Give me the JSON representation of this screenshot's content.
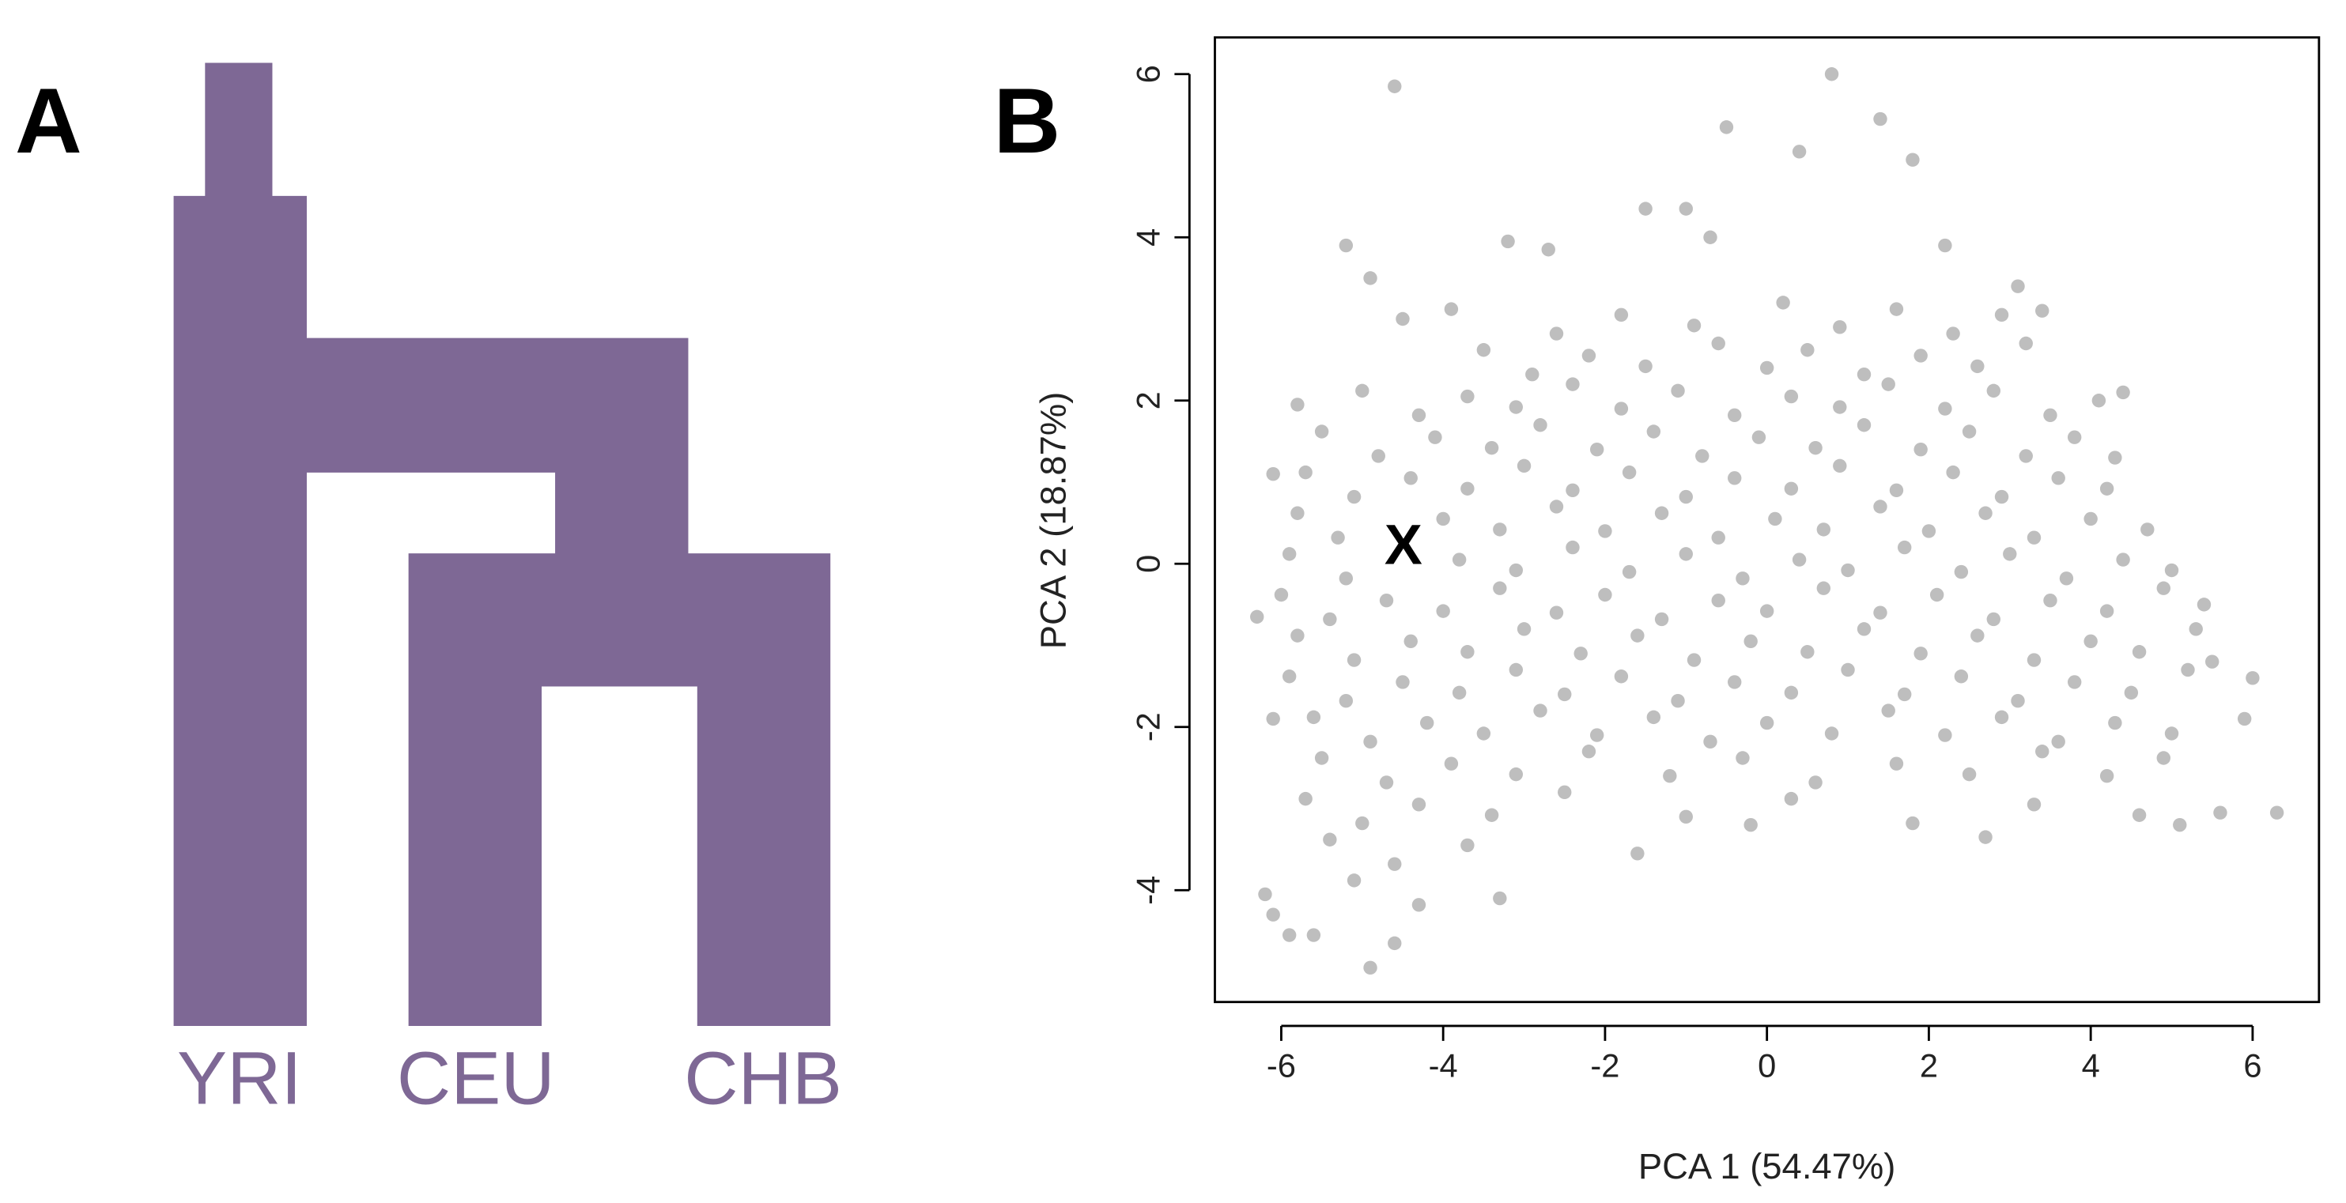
{
  "panel_a": {
    "label": "A",
    "populations": [
      "YRI",
      "CEU",
      "CHB"
    ]
  },
  "chart_data": {
    "type": "scatter",
    "panel_label": "B",
    "annotation": "X",
    "x_label": "PCA 1 (54.47%)",
    "y_label": "PCA 2 (18.87%)",
    "color": "#bebebe",
    "xlim": [
      -6.82,
      6.82
    ],
    "ylim": [
      -5.37,
      6.45
    ],
    "xticks": [
      -6,
      -4,
      -2,
      0,
      2,
      4,
      6
    ],
    "yticks": [
      -4,
      -2,
      0,
      2,
      4,
      6
    ],
    "x": [
      -3.9,
      -2.6,
      -1.8,
      -0.9,
      0.2,
      0.9,
      1.6,
      2.3,
      2.9,
      -3.5,
      -2.9,
      -2.2,
      -1.5,
      -0.6,
      0.0,
      0.5,
      1.2,
      1.9,
      2.6,
      3.2,
      -5.0,
      -4.3,
      -3.7,
      -3.1,
      -2.4,
      -1.8,
      -1.1,
      -0.4,
      0.3,
      0.9,
      1.5,
      2.2,
      2.8,
      3.5,
      -5.5,
      -4.8,
      -4.1,
      -3.4,
      -2.8,
      -2.1,
      -1.4,
      -0.8,
      -0.1,
      0.6,
      1.2,
      1.9,
      2.5,
      3.2,
      3.8,
      -5.7,
      -5.1,
      -4.4,
      -3.7,
      -3.0,
      -2.4,
      -1.7,
      -1.0,
      -0.4,
      0.3,
      0.9,
      1.6,
      2.3,
      2.9,
      3.6,
      4.2,
      -5.8,
      -5.3,
      -4.0,
      -3.3,
      -2.6,
      -2.0,
      -1.3,
      -0.6,
      0.1,
      0.7,
      1.4,
      2.0,
      2.7,
      3.3,
      4.0,
      4.7,
      -5.9,
      -5.2,
      -3.8,
      -3.1,
      -2.4,
      -1.7,
      -1.0,
      -0.3,
      0.4,
      1.0,
      1.7,
      2.4,
      3.0,
      3.7,
      4.4,
      5.0,
      -6.0,
      -5.4,
      -4.7,
      -4.0,
      -3.3,
      -2.6,
      -2.0,
      -1.3,
      -0.6,
      0.0,
      0.7,
      1.4,
      2.1,
      2.8,
      3.5,
      4.2,
      4.9,
      -5.8,
      -5.1,
      -4.4,
      -3.7,
      -3.0,
      -2.3,
      -1.6,
      -0.9,
      -0.2,
      0.5,
      1.2,
      1.9,
      2.6,
      3.3,
      4.0,
      4.6,
      5.3,
      -5.9,
      -5.2,
      -4.5,
      -3.8,
      -3.1,
      -2.5,
      -1.8,
      -1.1,
      -0.4,
      0.3,
      1.0,
      1.7,
      2.4,
      3.1,
      3.8,
      4.5,
      5.2,
      -5.6,
      -4.9,
      -4.2,
      -3.5,
      -2.8,
      -2.1,
      -1.4,
      -0.7,
      0.0,
      0.8,
      1.5,
      2.2,
      2.9,
      3.6,
      4.3,
      5.0,
      -5.5,
      -4.7,
      -3.9,
      -3.1,
      -2.2,
      -1.2,
      -0.3,
      0.6,
      1.6,
      2.5,
      3.4,
      4.2,
      4.9,
      -5.7,
      -5.0,
      -4.3,
      -3.4,
      -2.5,
      -1.0,
      0.3,
      1.8,
      3.3,
      4.6,
      -5.4,
      -4.6,
      -3.7,
      -5.1,
      -4.3,
      -4.6,
      0.8,
      -0.5,
      1.4,
      0.4,
      1.8,
      -5.2,
      -4.9,
      -4.5,
      -6.1,
      -5.8,
      -6.3,
      -6.1,
      -6.2,
      -6.1,
      -5.9,
      -5.6,
      -4.9,
      -4.6,
      -3.3,
      -1.6,
      -0.2,
      2.7,
      6.3,
      5.9,
      6.0,
      5.6,
      5.1,
      4.4,
      4.1,
      3.4,
      3.1,
      -3.2,
      -2.7,
      -1.5,
      -1.0,
      -0.7,
      2.2,
      5.4,
      5.5,
      4.3
    ],
    "values": [
      3.12,
      2.82,
      3.05,
      2.92,
      3.2,
      2.9,
      3.12,
      2.82,
      3.05,
      2.62,
      2.32,
      2.55,
      2.42,
      2.7,
      2.4,
      2.62,
      2.32,
      2.55,
      2.42,
      2.7,
      2.12,
      1.82,
      2.05,
      1.92,
      2.2,
      1.9,
      2.12,
      1.82,
      2.05,
      1.92,
      2.2,
      1.9,
      2.12,
      1.82,
      1.62,
      1.32,
      1.55,
      1.42,
      1.7,
      1.4,
      1.62,
      1.32,
      1.55,
      1.42,
      1.7,
      1.4,
      1.62,
      1.32,
      1.55,
      1.12,
      0.82,
      1.05,
      0.92,
      1.2,
      0.9,
      1.12,
      0.82,
      1.05,
      0.92,
      1.2,
      0.9,
      1.12,
      0.82,
      1.05,
      0.92,
      0.62,
      0.32,
      0.55,
      0.42,
      0.7,
      0.4,
      0.62,
      0.32,
      0.55,
      0.42,
      0.7,
      0.4,
      0.62,
      0.32,
      0.55,
      0.42,
      0.12,
      -0.18,
      0.05,
      -0.08,
      0.2,
      -0.1,
      0.12,
      -0.18,
      0.05,
      -0.08,
      0.2,
      -0.1,
      0.12,
      -0.18,
      0.05,
      -0.08,
      -0.38,
      -0.68,
      -0.45,
      -0.58,
      -0.3,
      -0.6,
      -0.38,
      -0.68,
      -0.45,
      -0.58,
      -0.3,
      -0.6,
      -0.38,
      -0.68,
      -0.45,
      -0.58,
      -0.3,
      -0.88,
      -1.18,
      -0.95,
      -1.08,
      -0.8,
      -1.1,
      -0.88,
      -1.18,
      -0.95,
      -1.08,
      -0.8,
      -1.1,
      -0.88,
      -1.18,
      -0.95,
      -1.08,
      -0.8,
      -1.38,
      -1.68,
      -1.45,
      -1.58,
      -1.3,
      -1.6,
      -1.38,
      -1.68,
      -1.45,
      -1.58,
      -1.3,
      -1.6,
      -1.38,
      -1.68,
      -1.45,
      -1.58,
      -1.3,
      -1.88,
      -2.18,
      -1.95,
      -2.08,
      -1.8,
      -2.1,
      -1.88,
      -2.18,
      -1.95,
      -2.08,
      -1.8,
      -2.1,
      -1.88,
      -2.18,
      -1.95,
      -2.08,
      -2.38,
      -2.68,
      -2.45,
      -2.58,
      -2.3,
      -2.6,
      -2.38,
      -2.68,
      -2.45,
      -2.58,
      -2.3,
      -2.6,
      -2.38,
      -2.88,
      -3.18,
      -2.95,
      -3.08,
      -2.8,
      -3.1,
      -2.88,
      -3.18,
      -2.95,
      -3.08,
      -3.38,
      -3.68,
      -3.45,
      -3.88,
      -4.18,
      5.85,
      6.0,
      5.35,
      5.45,
      5.05,
      4.95,
      3.9,
      3.5,
      3.0,
      1.1,
      1.95,
      -0.65,
      -1.9,
      -4.05,
      -4.3,
      -4.55,
      -4.55,
      -4.95,
      -4.65,
      -4.1,
      -3.55,
      -3.2,
      -3.35,
      -3.05,
      -1.9,
      -1.4,
      -3.05,
      -3.2,
      2.1,
      2.0,
      3.1,
      3.4,
      3.95,
      3.85,
      4.35,
      4.35,
      4.0,
      3.9,
      -0.5,
      -1.2,
      1.3
    ]
  }
}
